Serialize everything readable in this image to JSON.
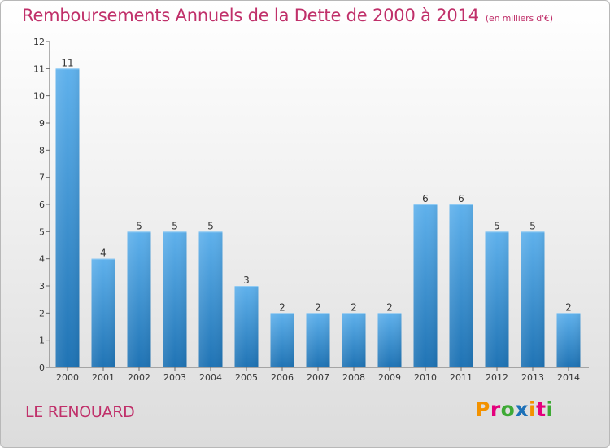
{
  "title": "Remboursements Annuels de la Dette de 2000 à 2014",
  "subtitle": "(en milliers d'€)",
  "commune": "LE RENOUARD",
  "logo": {
    "letters": [
      "P",
      "r",
      "o",
      "x",
      "i",
      "t",
      "i"
    ]
  },
  "colors": {
    "title": "#c0306a",
    "bar_light": "#5fb1ec",
    "bar_dark": "#1f73b4"
  },
  "chart_data": {
    "type": "bar",
    "title": "Remboursements Annuels de la Dette de 2000 à 2014",
    "subtitle": "(en milliers d'€)",
    "xlabel": "",
    "ylabel": "",
    "categories": [
      "2000",
      "2001",
      "2002",
      "2003",
      "2004",
      "2005",
      "2006",
      "2007",
      "2008",
      "2009",
      "2010",
      "2011",
      "2012",
      "2013",
      "2014"
    ],
    "values": [
      11,
      4,
      5,
      5,
      5,
      3,
      2,
      2,
      2,
      2,
      6,
      6,
      5,
      5,
      2
    ],
    "ylim": [
      0,
      12
    ],
    "yticks": [
      0,
      1,
      2,
      3,
      4,
      5,
      6,
      7,
      8,
      9,
      10,
      11,
      12
    ],
    "grid": false,
    "legend": "none"
  }
}
